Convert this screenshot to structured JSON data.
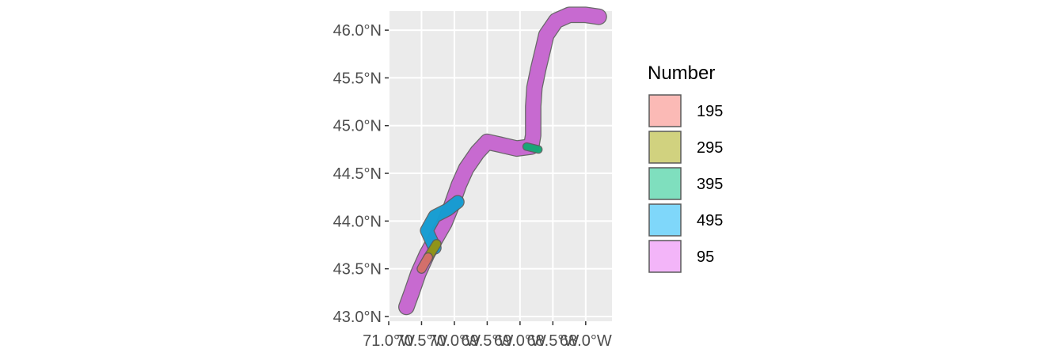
{
  "legend": {
    "title": "Number",
    "items": [
      {
        "label": "195",
        "color": "#F8766D"
      },
      {
        "label": "295",
        "color": "#A3A500"
      },
      {
        "label": "395",
        "color": "#00BF7D"
      },
      {
        "label": "495",
        "color": "#00B0F6"
      },
      {
        "label": "95",
        "color": "#E76BF3"
      }
    ]
  },
  "chart_data": {
    "type": "map",
    "xlim": [
      -71.0,
      -67.6
    ],
    "ylim": [
      42.95,
      46.2
    ],
    "x_ticks": [
      {
        "value": -71.0,
        "label": "71.0°W"
      },
      {
        "value": -70.5,
        "label": "70.5°W"
      },
      {
        "value": -70.0,
        "label": "70.0°W"
      },
      {
        "value": -69.5,
        "label": "69.5°W"
      },
      {
        "value": -69.0,
        "label": "69.0°W"
      },
      {
        "value": -68.5,
        "label": "68.5°W"
      },
      {
        "value": -68.0,
        "label": "68.0°W"
      }
    ],
    "y_ticks": [
      {
        "value": 43.0,
        "label": "43.0°N"
      },
      {
        "value": 43.5,
        "label": "43.5°N"
      },
      {
        "value": 44.0,
        "label": "44.0°N"
      },
      {
        "value": 44.5,
        "label": "44.5°N"
      },
      {
        "value": 45.0,
        "label": "45.0°N"
      },
      {
        "value": 45.5,
        "label": "45.5°N"
      },
      {
        "value": 46.0,
        "label": "46.0°N"
      }
    ],
    "panel_background": "#EBEBEB",
    "grid_color": "#FFFFFF",
    "routes": [
      {
        "name": "95",
        "color": "#E76BF3",
        "width_deg": 0.22,
        "path": [
          [
            -70.73,
            43.1
          ],
          [
            -70.65,
            43.25
          ],
          [
            -70.55,
            43.45
          ],
          [
            -70.42,
            43.65
          ],
          [
            -70.3,
            43.8
          ],
          [
            -70.15,
            43.98
          ],
          [
            -70.05,
            44.15
          ],
          [
            -69.93,
            44.38
          ],
          [
            -69.82,
            44.55
          ],
          [
            -69.65,
            44.72
          ],
          [
            -69.5,
            44.83
          ],
          [
            -69.3,
            44.8
          ],
          [
            -69.05,
            44.76
          ],
          [
            -68.83,
            44.78
          ],
          [
            -68.8,
            44.9
          ],
          [
            -68.8,
            45.2
          ],
          [
            -68.78,
            45.4
          ],
          [
            -68.72,
            45.6
          ],
          [
            -68.65,
            45.8
          ],
          [
            -68.6,
            45.95
          ],
          [
            -68.45,
            46.1
          ],
          [
            -68.25,
            46.16
          ],
          [
            -68.0,
            46.16
          ],
          [
            -67.8,
            46.14
          ]
        ]
      },
      {
        "name": "495",
        "color": "#00B0F6",
        "width_deg": 0.18,
        "path": [
          [
            -70.3,
            43.72
          ],
          [
            -70.42,
            43.9
          ],
          [
            -70.3,
            44.05
          ],
          [
            -70.1,
            44.12
          ],
          [
            -69.95,
            44.2
          ]
        ]
      },
      {
        "name": "395",
        "color": "#00BF7D",
        "width_deg": 0.1,
        "path": [
          [
            -68.9,
            44.78
          ],
          [
            -68.72,
            44.75
          ]
        ]
      },
      {
        "name": "295",
        "color": "#A3A500",
        "width_deg": 0.12,
        "path": [
          [
            -70.4,
            43.62
          ],
          [
            -70.27,
            43.76
          ]
        ]
      },
      {
        "name": "195",
        "color": "#F8766D",
        "width_deg": 0.12,
        "path": [
          [
            -70.5,
            43.5
          ],
          [
            -70.4,
            43.62
          ]
        ]
      }
    ]
  }
}
